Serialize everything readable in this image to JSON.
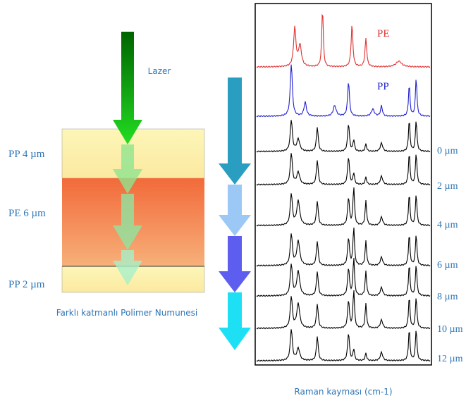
{
  "laser_label": "Lazer",
  "layers": [
    {
      "label": "PP 4 µm"
    },
    {
      "label": "PE 6 µm"
    },
    {
      "label": "PP 2 µm"
    }
  ],
  "sample_caption": "Farklı katmanlı Polimer Numunesi",
  "spectra": {
    "labels": [
      "PE",
      "PP"
    ],
    "depths": [
      "0 µm",
      "2 µm",
      "4 µm",
      "6 µm",
      "8 µm",
      "10 µm",
      "12 µm"
    ],
    "x_axis_label": "Raman kayması (cm-1)"
  }
}
